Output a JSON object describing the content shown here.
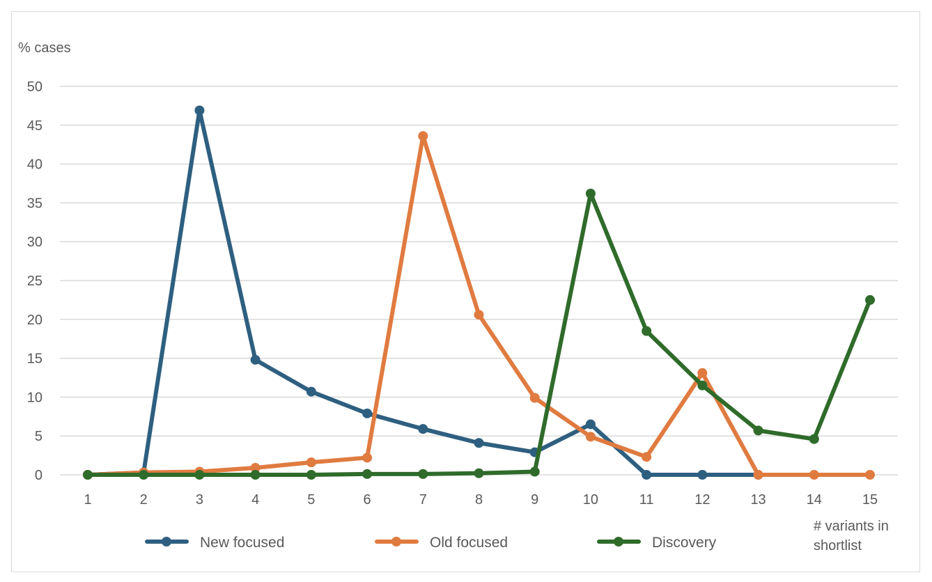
{
  "chart_data": {
    "type": "line",
    "title": "",
    "ylabel": "% cases",
    "xlabel": [
      "# variants in",
      "shortlist"
    ],
    "ylim": [
      0,
      50
    ],
    "yticks": [
      0,
      5,
      10,
      15,
      20,
      25,
      30,
      35,
      40,
      45,
      50
    ],
    "x": [
      1,
      2,
      3,
      4,
      5,
      6,
      7,
      8,
      9,
      10,
      11,
      12,
      13,
      14,
      15
    ],
    "grid": true,
    "legend_position": "bottom",
    "series": [
      {
        "name": "New focused",
        "color": "#2e5f80",
        "values": [
          0,
          0.3,
          46.9,
          14.8,
          10.7,
          7.9,
          5.9,
          4.1,
          2.9,
          6.5,
          0,
          0,
          0,
          null,
          null
        ]
      },
      {
        "name": "Old focused",
        "color": "#e07b40",
        "values": [
          0,
          0.3,
          0.4,
          0.9,
          1.6,
          2.2,
          43.6,
          20.6,
          9.9,
          4.9,
          2.3,
          13.1,
          0,
          0,
          0
        ]
      },
      {
        "name": "Discovery",
        "color": "#2f6b2a",
        "values": [
          0,
          0,
          0,
          0,
          0,
          0.1,
          0.1,
          0.2,
          0.4,
          36.2,
          18.5,
          11.5,
          5.7,
          4.6,
          22.5
        ]
      }
    ]
  }
}
